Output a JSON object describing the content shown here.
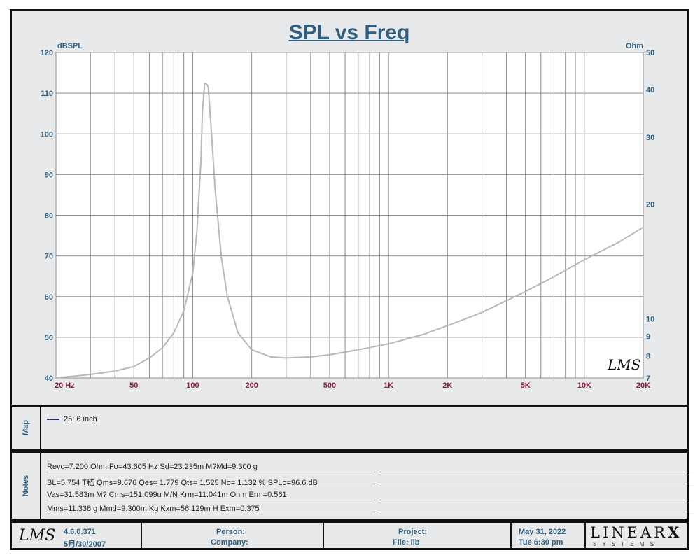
{
  "chart_data": {
    "type": "line",
    "title": "SPL vs Freq",
    "ylabel_left": "dBSPL",
    "ylabel_right": "Ohm",
    "xscale": "log",
    "xlim": [
      20,
      20000
    ],
    "ylim": [
      40,
      120
    ],
    "y2scale": "log",
    "y2lim": [
      7,
      50
    ],
    "grid": true,
    "x_ticks": [
      {
        "value": 20,
        "label": "20  Hz"
      },
      {
        "value": 50,
        "label": "50"
      },
      {
        "value": 100,
        "label": "100"
      },
      {
        "value": 200,
        "label": "200"
      },
      {
        "value": 500,
        "label": "500"
      },
      {
        "value": 1000,
        "label": "1K"
      },
      {
        "value": 2000,
        "label": "2K"
      },
      {
        "value": 5000,
        "label": "5K"
      },
      {
        "value": 10000,
        "label": "10K"
      },
      {
        "value": 20000,
        "label": "20K"
      }
    ],
    "y_ticks": [
      "40",
      "50",
      "60",
      "70",
      "80",
      "90",
      "100",
      "110",
      "120"
    ],
    "y2_ticks": [
      {
        "value": 7,
        "label": "7"
      },
      {
        "value": 8,
        "label": "8"
      },
      {
        "value": 9,
        "label": "9"
      },
      {
        "value": 10,
        "label": "10"
      },
      {
        "value": 20,
        "label": "20"
      },
      {
        "value": 30,
        "label": "30"
      },
      {
        "value": 40,
        "label": "40"
      },
      {
        "value": 50,
        "label": "50"
      }
    ],
    "series": [
      {
        "axis": "right",
        "x": [
          20,
          30,
          40,
          50,
          60,
          70,
          80,
          90,
          100,
          105,
          110,
          112,
          115,
          118,
          120,
          125,
          130,
          140,
          150,
          170,
          200,
          250,
          300,
          400,
          500,
          700,
          1000,
          1500,
          2000,
          3000,
          5000,
          7000,
          10000,
          15000,
          20000
        ],
        "y": [
          7.0,
          7.15,
          7.3,
          7.5,
          7.9,
          8.4,
          9.2,
          10.5,
          13.2,
          17,
          26,
          35,
          41.5,
          41.3,
          40.5,
          30,
          22,
          14.5,
          11.5,
          9.2,
          8.3,
          7.95,
          7.9,
          7.95,
          8.05,
          8.3,
          8.6,
          9.1,
          9.6,
          10.4,
          11.8,
          12.9,
          14.3,
          15.9,
          17.4
        ]
      }
    ]
  },
  "map": {
    "label": "Map",
    "legend_text": "25: 6 inch"
  },
  "notes": {
    "label": "Notes",
    "rows": [
      "Revc=7.200 Ohm  Fo=43.605 Hz  Sd=23.235m M?Md=9.300 g",
      "BL=5.754 T嵇  Qms=9.676  Qes= 1.779  Qts= 1.525  No= 1.132 %  SPLo=96.6 dB",
      "Vas=31.583m M? Cms=151.099u M/N  Krm=11.041m Ohm  Erm=0.561",
      "Mms=11.336 g  Mmd=9.300m Kg  Kxm=56.129m H  Exm=0.375"
    ]
  },
  "footer": {
    "logo": "LMS",
    "version": "4.6.0.371",
    "date_built": "5月/30/2007",
    "person_label": "Person:",
    "company_label": "Company:",
    "project_label": "Project:",
    "file_label": "File: lib",
    "date": "May 31, 2022",
    "time": "Tue  6:30 pm",
    "brand": "LINEAR",
    "brand_mark": "X",
    "brand_sub": "S Y S T E M S"
  },
  "watermark": "LMS",
  "colors": {
    "title": "#2f5f7f",
    "axis_labels": "#2f5f7f",
    "x_tick_labels": "#8a1f3a",
    "curve": "#b8b8b8",
    "grid": "#8e8e8e"
  }
}
